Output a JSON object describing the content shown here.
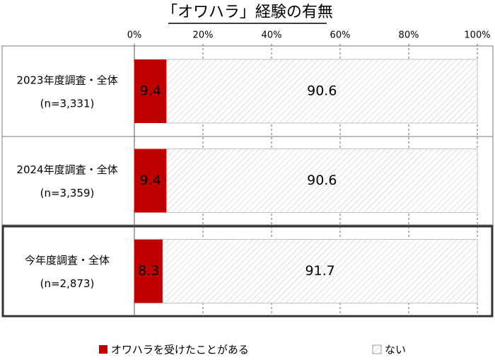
{
  "chart_data": {
    "type": "stacked-bar-horizontal",
    "title": "「オワハラ」経験の有無",
    "categories": [
      "2023年度調査・全体",
      "2024年度調査・全体",
      "今年度調査・全体"
    ],
    "category_notes": [
      "(n=3,331)",
      "(n=3,359)",
      "(n=2,873)"
    ],
    "highlighted_category": 2,
    "series": [
      {
        "name": "オワハラを受けたことがある",
        "color": "#c00000",
        "pattern": "solid",
        "values": [
          9.4,
          9.4,
          8.3
        ]
      },
      {
        "name": "ない",
        "color": "#bfbfbf",
        "pattern": "hatch",
        "values": [
          90.6,
          90.6,
          91.7
        ]
      }
    ],
    "xlim": [
      0,
      100
    ],
    "xticks": [
      {
        "value": 0,
        "label": "0%"
      },
      {
        "value": 20,
        "label": "20%"
      },
      {
        "value": 40,
        "label": "40%"
      },
      {
        "value": 60,
        "label": "60%"
      },
      {
        "value": 80,
        "label": "80%"
      },
      {
        "value": 100,
        "label": "100%"
      }
    ],
    "grid": true
  }
}
